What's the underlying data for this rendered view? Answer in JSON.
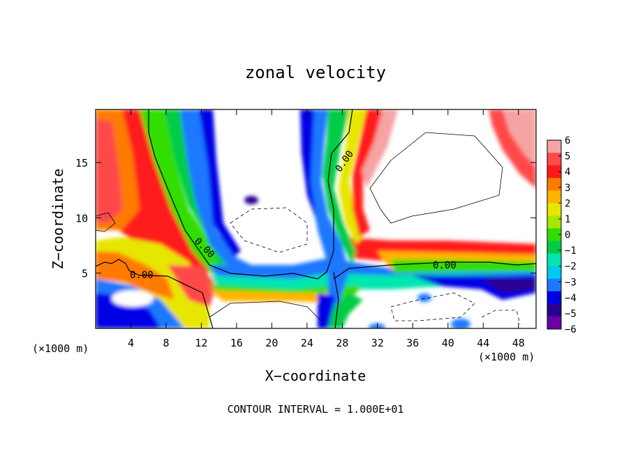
{
  "chart_data": {
    "type": "heatmap",
    "title": "zonal velocity",
    "xlabel": "X−coordinate",
    "ylabel": "Z−coordinate",
    "x_unit_left": "(×1000 m)",
    "x_unit_right": "(×1000 m)",
    "footer": "CONTOUR INTERVAL = 1.000E+01",
    "xlim": [
      0,
      50
    ],
    "ylim": [
      0,
      19.8
    ],
    "x_ticks": [
      4,
      8,
      12,
      16,
      20,
      24,
      28,
      32,
      36,
      40,
      44,
      48
    ],
    "y_ticks": [
      5,
      10,
      15
    ],
    "colorbar": {
      "levels": [
        6,
        5,
        4,
        3,
        2,
        1,
        0,
        -1,
        -2,
        -3,
        -4,
        -5,
        -6
      ],
      "colors": [
        "#f5a3a3",
        "#ff4a4a",
        "#ff1a1a",
        "#ff7a00",
        "#ffb400",
        "#e6e600",
        "#a6e600",
        "#33dd00",
        "#00cc44",
        "#00e6b0",
        "#00c8f0",
        "#1e78ff",
        "#0000e6",
        "#2a0090",
        "#6a00a8"
      ]
    },
    "contour_labels": [
      "0.00",
      "0.00",
      "0.00",
      "0.00"
    ]
  }
}
